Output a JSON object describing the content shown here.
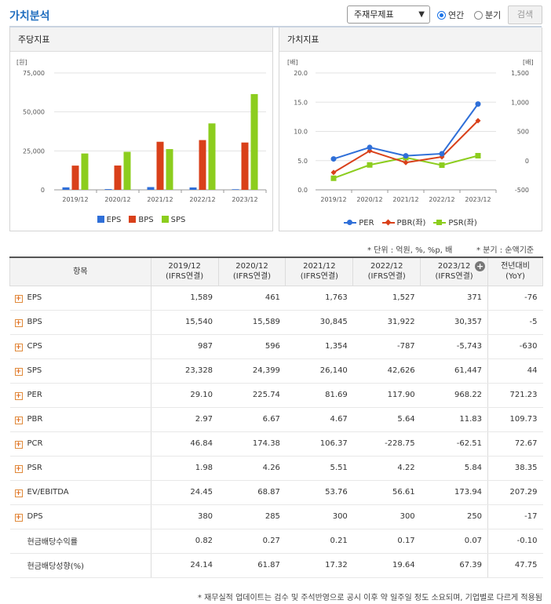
{
  "header": {
    "title": "가치분석",
    "select_value": "주재무제표",
    "radio_annual": "연간",
    "radio_quarter": "분기",
    "search_label": "검색"
  },
  "panel_left": {
    "title": "주당지표"
  },
  "panel_right": {
    "title": "가치지표"
  },
  "notes": {
    "unit": "* 단위 : 억원, %, %p, 배",
    "quarter": "* 분기 : 순액기준",
    "footer": "* 재무실적 업데이트는 검수 및 주석반영으로 공시 이후 약 일주일 정도 소요되며, 기업별로 다르게 적용됨"
  },
  "chart_data": [
    {
      "type": "bar",
      "title": "주당지표",
      "ylabel": "[원]",
      "categories": [
        "2019/12",
        "2020/12",
        "2021/12",
        "2022/12",
        "2023/12"
      ],
      "ylim": [
        0,
        75000
      ],
      "yticks": [
        "0",
        "25,000",
        "50,000",
        "75,000"
      ],
      "series": [
        {
          "name": "EPS",
          "color": "#2f6fd8",
          "values": [
            1589,
            461,
            1763,
            1527,
            371
          ]
        },
        {
          "name": "BPS",
          "color": "#d9401a",
          "values": [
            15540,
            15589,
            30845,
            31922,
            30357
          ]
        },
        {
          "name": "SPS",
          "color": "#8ccd1e",
          "values": [
            23328,
            24399,
            26140,
            42626,
            61447
          ]
        }
      ]
    },
    {
      "type": "line",
      "title": "가치지표",
      "ylabel_left": "[배]",
      "ylabel_right": "[배]",
      "categories": [
        "2019/12",
        "2020/12",
        "2021/12",
        "2022/12",
        "2023/12"
      ],
      "ylim_left": [
        0,
        20
      ],
      "ylim_right": [
        -500,
        1500
      ],
      "yticks_left": [
        "0.0",
        "5.0",
        "10.0",
        "15.0",
        "20.0"
      ],
      "yticks_right": [
        "-500",
        "0",
        "500",
        "1,000",
        "1,500"
      ],
      "series": [
        {
          "name": "PER",
          "axis": "right",
          "marker": "circle",
          "color": "#2f6fd8",
          "values": [
            29.1,
            225.74,
            81.69,
            117.9,
            968.22
          ]
        },
        {
          "name": "PBR(좌)",
          "axis": "left",
          "marker": "diamond",
          "color": "#d9401a",
          "values": [
            2.97,
            6.67,
            4.67,
            5.64,
            11.83
          ]
        },
        {
          "name": "PSR(좌)",
          "axis": "left",
          "marker": "square",
          "color": "#8ccd1e",
          "values": [
            1.98,
            4.26,
            5.51,
            4.22,
            5.84
          ]
        }
      ]
    }
  ],
  "table": {
    "headers": [
      {
        "line1": "항목",
        "line2": ""
      },
      {
        "line1": "2019/12",
        "line2": "(IFRS연결)"
      },
      {
        "line1": "2020/12",
        "line2": "(IFRS연결)"
      },
      {
        "line1": "2021/12",
        "line2": "(IFRS연결)"
      },
      {
        "line1": "2022/12",
        "line2": "(IFRS연결)"
      },
      {
        "line1": "2023/12",
        "line2": "(IFRS연결)"
      },
      {
        "line1": "전년대비",
        "line2": "(YoY)"
      }
    ],
    "rows": [
      {
        "label": "EPS",
        "expand": true,
        "cells": [
          "1,589",
          "461",
          "1,763",
          "1,527",
          "371",
          "-76"
        ]
      },
      {
        "label": "BPS",
        "expand": true,
        "cells": [
          "15,540",
          "15,589",
          "30,845",
          "31,922",
          "30,357",
          "-5"
        ]
      },
      {
        "label": "CPS",
        "expand": true,
        "cells": [
          "987",
          "596",
          "1,354",
          "-787",
          "-5,743",
          "-630"
        ]
      },
      {
        "label": "SPS",
        "expand": true,
        "cells": [
          "23,328",
          "24,399",
          "26,140",
          "42,626",
          "61,447",
          "44"
        ]
      },
      {
        "label": "PER",
        "expand": true,
        "cells": [
          "29.10",
          "225.74",
          "81.69",
          "117.90",
          "968.22",
          "721.23"
        ]
      },
      {
        "label": "PBR",
        "expand": true,
        "cells": [
          "2.97",
          "6.67",
          "4.67",
          "5.64",
          "11.83",
          "109.73"
        ]
      },
      {
        "label": "PCR",
        "expand": true,
        "cells": [
          "46.84",
          "174.38",
          "106.37",
          "-228.75",
          "-62.51",
          "72.67"
        ]
      },
      {
        "label": "PSR",
        "expand": true,
        "cells": [
          "1.98",
          "4.26",
          "5.51",
          "4.22",
          "5.84",
          "38.35"
        ]
      },
      {
        "label": "EV/EBITDA",
        "expand": true,
        "cells": [
          "24.45",
          "68.87",
          "53.76",
          "56.61",
          "173.94",
          "207.29"
        ]
      },
      {
        "label": "DPS",
        "expand": true,
        "cells": [
          "380",
          "285",
          "300",
          "300",
          "250",
          "-17"
        ]
      },
      {
        "label": "현금배당수익률",
        "expand": false,
        "cells": [
          "0.82",
          "0.27",
          "0.21",
          "0.17",
          "0.07",
          "-0.10"
        ]
      },
      {
        "label": "현금배당성향(%)",
        "expand": false,
        "cells": [
          "24.14",
          "61.87",
          "17.32",
          "19.64",
          "67.39",
          "47.75"
        ]
      }
    ]
  }
}
